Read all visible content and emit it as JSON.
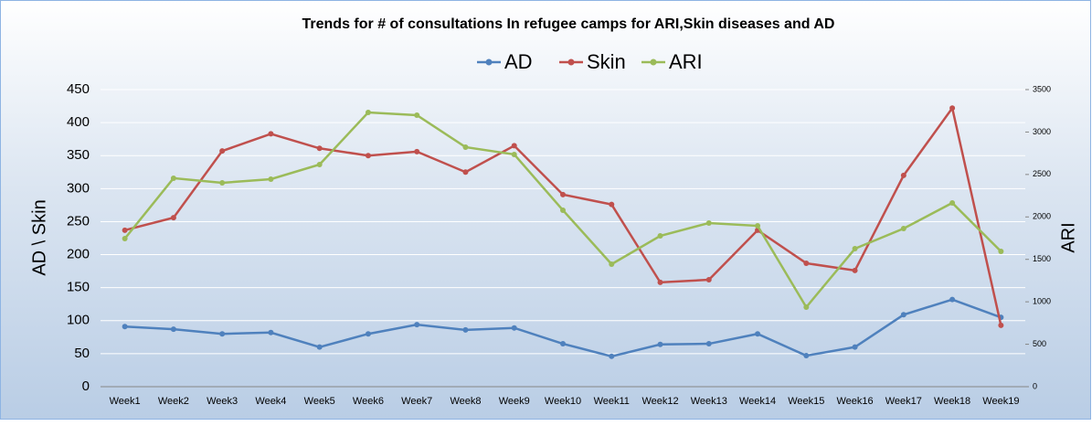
{
  "chart_data": {
    "type": "line",
    "title": "Trends for # of consultations In refugee camps for ARI,Skin diseases and AD",
    "y_label": "AD \\ Skin",
    "y2_label": "ARI",
    "categories": [
      "Week1",
      "Week2",
      "Week3",
      "Week4",
      "Week5",
      "Week6",
      "Week7",
      "Week8",
      "Week9",
      "Week10",
      "Week11",
      "Week12",
      "Week13",
      "Week14",
      "Week15",
      "Week16",
      "Week17",
      "Week18",
      "Week19"
    ],
    "series": [
      {
        "name": "AD",
        "color": "#4f81bd",
        "values": [
          91,
          87,
          80,
          82,
          60,
          80,
          94,
          86,
          89,
          65,
          46,
          64,
          65,
          80,
          47,
          60,
          109,
          132,
          105
        ]
      },
      {
        "name": "Skin",
        "color": "#c0504d",
        "values": [
          237,
          256,
          357,
          383,
          361,
          350,
          356,
          325,
          365,
          291,
          276,
          158,
          162,
          237,
          187,
          176,
          320,
          422,
          93
        ]
      },
      {
        "name": "ARI",
        "color": "#9bbb59",
        "axis": "y2",
        "values": [
          1745,
          2456,
          2402,
          2445,
          2617,
          3231,
          3199,
          2822,
          2736,
          2079,
          1443,
          1777,
          1928,
          1895,
          937,
          1626,
          1863,
          2165,
          1594
        ]
      }
    ],
    "ylim": [
      0,
      450
    ],
    "yticks": [
      0,
      50,
      100,
      150,
      200,
      250,
      300,
      350,
      400,
      450
    ],
    "y2lim": [
      0,
      3500
    ],
    "y2ticks": [
      0,
      500,
      1000,
      1500,
      2000,
      2500,
      3000,
      3500
    ],
    "grid": true,
    "legend": "top"
  }
}
